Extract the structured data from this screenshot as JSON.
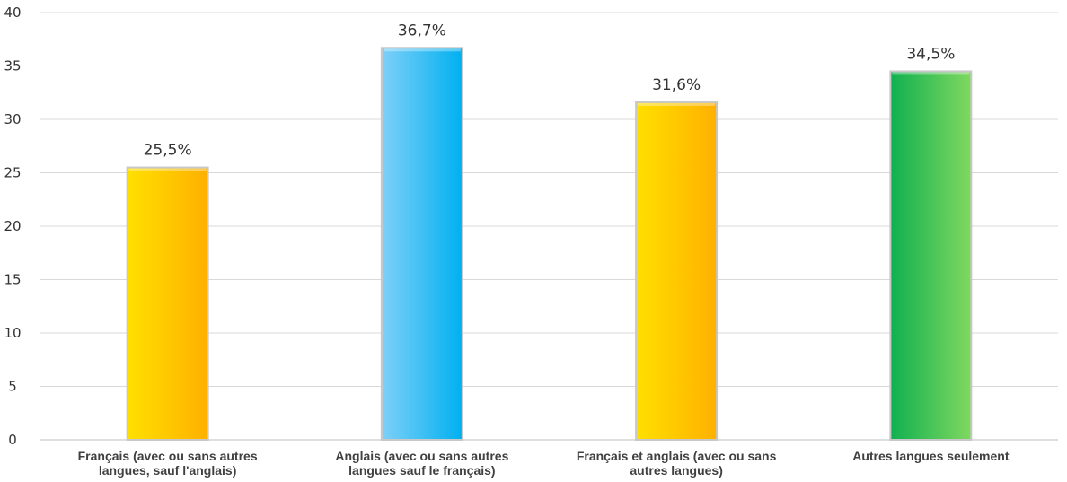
{
  "chart_data": {
    "type": "bar",
    "categories": [
      [
        "Français (avec ou sans autres",
        "langues, sauf l'anglais)"
      ],
      [
        "Anglais (avec ou sans autres",
        "langues sauf le français)"
      ],
      [
        "Français et anglais (avec ou sans",
        "autres langues)"
      ],
      [
        "Autres langues seulement"
      ]
    ],
    "values": [
      25.5,
      36.7,
      31.6,
      34.5
    ],
    "data_labels": [
      "25,5%",
      "36,7%",
      "31,6%",
      "34,5%"
    ],
    "colors": [
      [
        "#ffe000",
        "#ffb000"
      ],
      [
        "#7fd0f8",
        "#00b0f0"
      ],
      [
        "#ffe000",
        "#ffb000"
      ],
      [
        "#10b050",
        "#80d860"
      ]
    ],
    "ylim": [
      0,
      40
    ],
    "yticks": [
      0,
      5,
      10,
      15,
      20,
      25,
      30,
      35,
      40
    ],
    "title": "",
    "xlabel": "",
    "ylabel": "",
    "grid": true,
    "legend": "none"
  }
}
